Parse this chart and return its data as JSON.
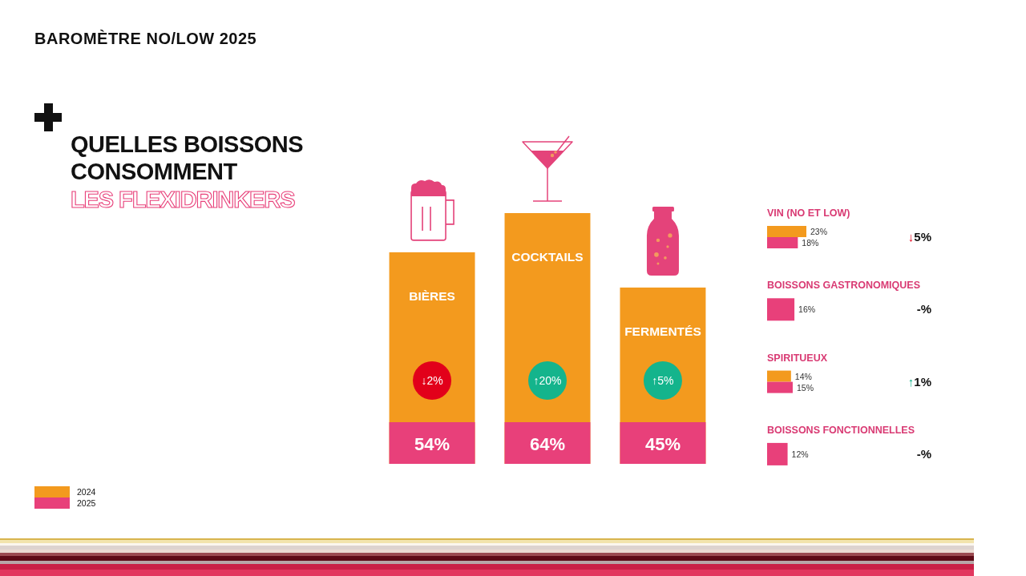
{
  "chart_data": [
    {
      "type": "bar",
      "title": "QUELLES BOISSONS\nCONSOMMENT",
      "subtitle": "LES FLEXIDRINKERS",
      "categories": [
        "BIÈRES",
        "COCKTAILS",
        "FERMENTÉS"
      ],
      "values": [
        54,
        64,
        45
      ],
      "value_labels": [
        "54%",
        "64%",
        "45%"
      ],
      "color": "#f39a1e",
      "tick_labels": "x",
      "annotations": [
        "BAROMÈTRE NO/LOW 2025",
        "↓2%",
        "↑20%",
        "↑5%"
      ]
    },
    {
      "type": "bar",
      "orientation": "horizontal",
      "categories": [
        "VIN (NO ET LOW)",
        "BOISSONS GASTRONOMIQUES",
        "SPIRITUEUX",
        "BOISSONS FONCTIONNELLES"
      ],
      "series": [
        {
          "name": "2024",
          "color": "#f39a1e",
          "values": [
            23,
            null,
            14,
            null
          ],
          "value_labels": [
            "23%",
            null,
            "14%",
            null
          ]
        },
        {
          "name": "2025",
          "color": "#e8407a",
          "values": [
            18,
            16,
            15,
            12
          ],
          "value_labels": [
            "18%",
            "16%",
            "15%",
            "12%"
          ]
        }
      ],
      "tick_labels": "y",
      "legend": "bottom left",
      "annotations": [
        "↓5%",
        "-%",
        "↑1%",
        "-%"
      ]
    }
  ]
}
